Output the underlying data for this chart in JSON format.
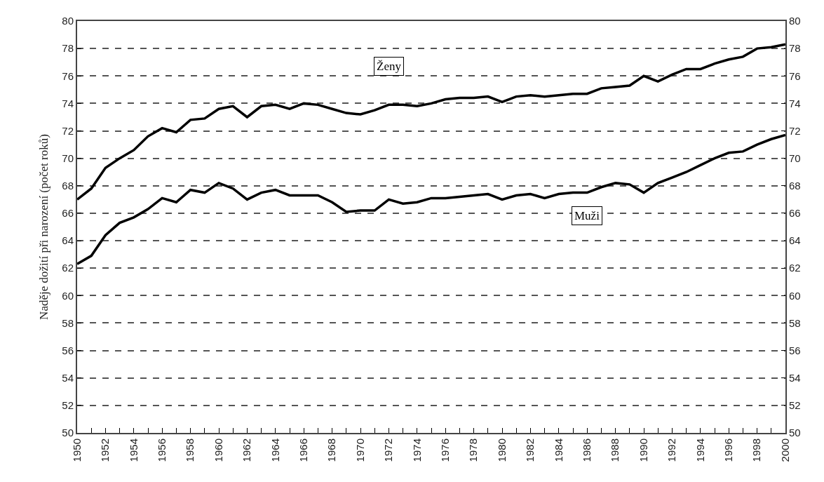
{
  "chart_data": {
    "type": "line",
    "ylabel": "Naděje dožití při narození (počet roků)",
    "x": [
      1950,
      1951,
      1952,
      1953,
      1954,
      1955,
      1956,
      1957,
      1958,
      1959,
      1960,
      1961,
      1962,
      1963,
      1964,
      1965,
      1966,
      1967,
      1968,
      1969,
      1970,
      1971,
      1972,
      1973,
      1974,
      1975,
      1976,
      1977,
      1978,
      1979,
      1980,
      1981,
      1982,
      1983,
      1984,
      1985,
      1986,
      1987,
      1988,
      1989,
      1990,
      1991,
      1992,
      1993,
      1994,
      1995,
      1996,
      1997,
      1998,
      1999,
      2000
    ],
    "series": [
      {
        "name": "Ženy",
        "color": "#000000",
        "values": [
          67.0,
          67.8,
          69.3,
          70.0,
          70.6,
          71.6,
          72.2,
          71.9,
          72.8,
          72.9,
          73.6,
          73.8,
          73.0,
          73.8,
          73.9,
          73.6,
          74.0,
          73.9,
          73.6,
          73.3,
          73.2,
          73.5,
          73.9,
          73.9,
          73.8,
          74.0,
          74.3,
          74.4,
          74.4,
          74.5,
          74.1,
          74.5,
          74.6,
          74.5,
          74.6,
          74.7,
          74.7,
          75.1,
          75.2,
          75.3,
          76.0,
          75.6,
          76.1,
          76.5,
          76.5,
          76.9,
          77.2,
          77.4,
          78.0,
          78.1,
          78.3
        ]
      },
      {
        "name": "Muži",
        "color": "#000000",
        "values": [
          62.3,
          62.9,
          64.4,
          65.3,
          65.7,
          66.3,
          67.1,
          66.8,
          67.7,
          67.5,
          68.2,
          67.8,
          67.0,
          67.5,
          67.7,
          67.3,
          67.3,
          67.3,
          66.8,
          66.1,
          66.2,
          66.2,
          67.0,
          66.7,
          66.8,
          67.1,
          67.1,
          67.2,
          67.3,
          67.4,
          67.0,
          67.3,
          67.4,
          67.1,
          67.4,
          67.5,
          67.5,
          67.9,
          68.2,
          68.1,
          67.5,
          68.2,
          68.6,
          69.0,
          69.5,
          70.0,
          70.4,
          70.5,
          71.0,
          71.4,
          71.7
        ]
      }
    ],
    "xlim": [
      1950,
      2000
    ],
    "xticks": [
      1950,
      {
        "value": 1951,
        "label": null
      },
      1952,
      {
        "value": 1953,
        "label": null
      },
      1954,
      {
        "value": 1955,
        "label": null
      },
      1956,
      {
        "value": 1957,
        "label": null
      },
      1958,
      {
        "value": 1959,
        "label": null
      },
      1960,
      {
        "value": 1961,
        "label": null
      },
      1962,
      {
        "value": 1963,
        "label": null
      },
      1964,
      {
        "value": 1965,
        "label": null
      },
      1966,
      {
        "value": 1967,
        "label": null
      },
      1968,
      {
        "value": 1969,
        "label": null
      },
      1970,
      {
        "value": 1971,
        "label": null
      },
      1972,
      {
        "value": 1973,
        "label": null
      },
      1974,
      {
        "value": 1975,
        "label": null
      },
      1976,
      {
        "value": 1977,
        "label": null
      },
      1978,
      {
        "value": 1979,
        "label": null
      },
      1980,
      {
        "value": 1981,
        "label": null
      },
      1982,
      {
        "value": 1983,
        "label": null
      },
      1984,
      {
        "value": 1985,
        "label": null
      },
      1986,
      {
        "value": 1987,
        "label": null
      },
      1988,
      {
        "value": 1989,
        "label": null
      },
      1990,
      {
        "value": 1991,
        "label": null
      },
      1992,
      {
        "value": 1993,
        "label": null
      },
      1994,
      {
        "value": 1995,
        "label": null
      },
      1996,
      {
        "value": 1997,
        "label": null
      },
      1998,
      {
        "value": 1999,
        "label": null
      },
      2000
    ],
    "ylim": [
      50,
      80
    ],
    "yticks": [
      50,
      52,
      54,
      56,
      58,
      60,
      62,
      64,
      66,
      68,
      70,
      72,
      74,
      76,
      78,
      80
    ],
    "y2lim": [
      50,
      80
    ],
    "y2ticks": [
      50,
      52,
      54,
      56,
      58,
      60,
      62,
      64,
      66,
      68,
      70,
      72,
      74,
      76,
      78,
      80
    ],
    "grid": "y",
    "line_style": "solid",
    "marker": "none",
    "legend": false
  }
}
